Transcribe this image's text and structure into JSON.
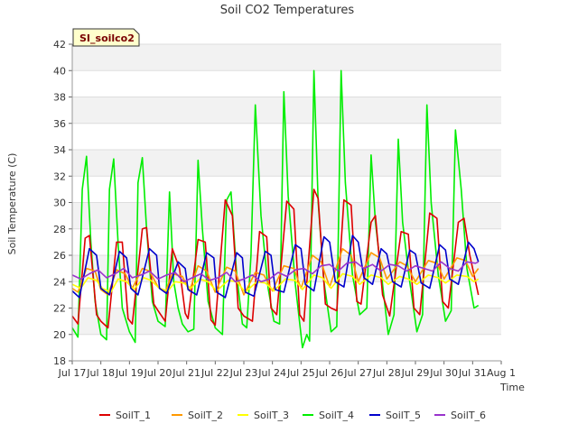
{
  "chart_data": {
    "type": "line",
    "title": "Soil CO2 Temperatures",
    "badge": "SI_soilco2",
    "xlabel": "Time",
    "ylabel": "Soil Temperature (C)",
    "ylim": [
      18,
      42
    ],
    "xlim": [
      0,
      15
    ],
    "y_ticks": [
      18,
      20,
      22,
      24,
      26,
      28,
      30,
      32,
      34,
      36,
      38,
      40,
      42
    ],
    "x_ticks": [
      {
        "x": 0,
        "label": "Jul 17"
      },
      {
        "x": 1,
        "label": "Jul 18"
      },
      {
        "x": 2,
        "label": "Jul 19"
      },
      {
        "x": 3,
        "label": "Jul 20"
      },
      {
        "x": 4,
        "label": "Jul 21"
      },
      {
        "x": 5,
        "label": "Jul 22"
      },
      {
        "x": 6,
        "label": "Jul 23"
      },
      {
        "x": 7,
        "label": "Jul 24"
      },
      {
        "x": 8,
        "label": "Jul 25"
      },
      {
        "x": 9,
        "label": "Jul 26"
      },
      {
        "x": 10,
        "label": "Jul 27"
      },
      {
        "x": 11,
        "label": "Jul 28"
      },
      {
        "x": 12,
        "label": "Jul 29"
      },
      {
        "x": 13,
        "label": "Jul 30"
      },
      {
        "x": 14,
        "label": "Jul 31"
      },
      {
        "x": 15,
        "label": "Aug 1"
      }
    ],
    "grid": true,
    "legend_position": "bottom",
    "series": [
      {
        "name": "SoilT_1",
        "color": "#dd0000",
        "x": [
          0.0,
          0.2,
          0.45,
          0.6,
          0.85,
          1.0,
          1.25,
          1.55,
          1.75,
          1.95,
          2.1,
          2.45,
          2.6,
          2.85,
          3.0,
          3.25,
          3.5,
          3.75,
          3.95,
          4.05,
          4.4,
          4.65,
          4.85,
          5.0,
          5.35,
          5.6,
          5.8,
          6.0,
          6.3,
          6.55,
          6.8,
          6.95,
          7.15,
          7.5,
          7.75,
          7.95,
          8.1,
          8.45,
          8.6,
          8.85,
          9.05,
          9.25,
          9.5,
          9.75,
          9.95,
          10.1,
          10.45,
          10.6,
          10.85,
          11.1,
          11.5,
          11.75,
          11.95,
          12.15,
          12.5,
          12.75,
          12.95,
          13.15,
          13.5,
          13.7,
          13.9,
          14.2
        ],
        "y": [
          21.4,
          20.8,
          27.3,
          27.5,
          21.5,
          21.0,
          20.5,
          27.0,
          27.0,
          21.2,
          20.8,
          28.0,
          28.1,
          22.3,
          21.8,
          21.0,
          26.5,
          25.0,
          21.6,
          21.2,
          27.2,
          27.0,
          21.1,
          20.7,
          30.2,
          29.0,
          22.0,
          21.4,
          21.0,
          27.8,
          27.4,
          22.0,
          21.5,
          30.1,
          29.5,
          21.5,
          21.0,
          31.0,
          30.3,
          22.3,
          22.0,
          21.8,
          30.2,
          29.8,
          22.5,
          22.3,
          28.5,
          29.0,
          23.0,
          21.4,
          27.8,
          27.6,
          22.0,
          21.5,
          29.2,
          28.8,
          22.5,
          22.0,
          28.5,
          28.8,
          26.0,
          23.0
        ]
      },
      {
        "name": "SoilT_2",
        "color": "#ff9900",
        "x": [
          0.0,
          0.2,
          0.5,
          0.8,
          1.0,
          1.25,
          1.55,
          1.85,
          2.1,
          2.45,
          2.7,
          3.0,
          3.25,
          3.5,
          3.85,
          4.1,
          4.4,
          4.7,
          5.0,
          5.4,
          5.7,
          6.0,
          6.4,
          6.7,
          7.0,
          7.4,
          7.75,
          8.0,
          8.4,
          8.7,
          9.0,
          9.45,
          9.75,
          10.0,
          10.45,
          10.75,
          11.0,
          11.45,
          11.7,
          12.0,
          12.45,
          12.75,
          13.0,
          13.45,
          13.75,
          14.0,
          14.2
        ],
        "y": [
          23.5,
          23.2,
          25.0,
          24.8,
          23.4,
          23.0,
          24.9,
          24.6,
          23.5,
          25.0,
          24.8,
          23.6,
          23.2,
          24.6,
          24.4,
          23.3,
          25.2,
          24.8,
          23.2,
          25.1,
          24.8,
          23.0,
          24.7,
          24.5,
          23.3,
          25.2,
          25.0,
          23.5,
          26.0,
          25.5,
          23.6,
          26.5,
          26.0,
          24.0,
          26.2,
          25.8,
          24.2,
          25.5,
          25.2,
          24.0,
          25.6,
          25.4,
          24.2,
          25.8,
          25.6,
          24.4,
          25.0
        ]
      },
      {
        "name": "SoilT_3",
        "color": "#ffff00",
        "x": [
          0.0,
          0.3,
          0.55,
          0.85,
          1.05,
          1.35,
          1.6,
          1.9,
          2.15,
          2.5,
          2.75,
          3.05,
          3.35,
          3.6,
          3.9,
          4.15,
          4.45,
          4.75,
          5.05,
          5.45,
          5.75,
          6.05,
          6.45,
          6.75,
          7.05,
          7.45,
          7.8,
          8.05,
          8.45,
          8.75,
          9.05,
          9.45,
          9.8,
          10.05,
          10.45,
          10.8,
          11.05,
          11.45,
          11.75,
          12.05,
          12.45,
          12.8,
          13.05,
          13.45,
          13.8,
          14.05,
          14.2
        ],
        "y": [
          23.8,
          23.5,
          24.3,
          24.1,
          23.5,
          23.2,
          24.2,
          24.0,
          23.4,
          24.3,
          24.1,
          23.5,
          23.3,
          24.0,
          23.9,
          23.5,
          24.2,
          24.0,
          23.3,
          24.1,
          24.0,
          23.2,
          24.0,
          23.9,
          23.3,
          24.2,
          24.1,
          23.4,
          24.5,
          24.3,
          23.5,
          24.6,
          24.4,
          23.8,
          24.5,
          24.3,
          23.8,
          24.4,
          24.2,
          23.8,
          24.5,
          24.3,
          23.9,
          24.5,
          24.4,
          24.0,
          24.2
        ]
      },
      {
        "name": "SoilT_4",
        "color": "#00ee00",
        "x": [
          0.0,
          0.2,
          0.35,
          0.5,
          0.65,
          0.8,
          1.0,
          1.2,
          1.3,
          1.45,
          1.6,
          1.75,
          2.0,
          2.2,
          2.3,
          2.45,
          2.6,
          2.8,
          3.0,
          3.25,
          3.4,
          3.55,
          3.7,
          3.85,
          4.05,
          4.25,
          4.4,
          4.55,
          4.75,
          5.0,
          5.25,
          5.4,
          5.55,
          5.75,
          5.95,
          6.1,
          6.25,
          6.4,
          6.6,
          6.85,
          7.05,
          7.25,
          7.4,
          7.55,
          7.8,
          8.05,
          8.2,
          8.3,
          8.45,
          8.6,
          8.8,
          9.05,
          9.25,
          9.4,
          9.55,
          9.8,
          10.05,
          10.3,
          10.45,
          10.6,
          10.85,
          11.05,
          11.25,
          11.4,
          11.55,
          11.8,
          12.05,
          12.25,
          12.4,
          12.55,
          12.8,
          13.05,
          13.25,
          13.4,
          13.6,
          13.8,
          14.05,
          14.2
        ],
        "y": [
          20.5,
          19.8,
          31.0,
          33.5,
          27.0,
          22.5,
          20.0,
          19.6,
          31.0,
          33.3,
          27.0,
          22.0,
          20.2,
          19.4,
          31.5,
          33.4,
          28.0,
          22.5,
          21.0,
          20.6,
          30.8,
          24.0,
          22.0,
          20.8,
          20.2,
          20.4,
          33.2,
          28.0,
          22.5,
          20.5,
          20.0,
          30.2,
          30.8,
          24.5,
          20.8,
          20.5,
          26.0,
          37.4,
          29.0,
          23.5,
          21.0,
          20.8,
          38.4,
          30.5,
          23.8,
          19.0,
          20.0,
          19.5,
          40.0,
          30.0,
          24.0,
          20.2,
          20.6,
          40.0,
          31.5,
          24.5,
          21.5,
          22.0,
          33.6,
          28.5,
          23.8,
          20.0,
          21.5,
          34.8,
          28.5,
          24.0,
          20.2,
          21.5,
          37.4,
          30.0,
          24.5,
          21.0,
          21.8,
          35.5,
          31.0,
          25.0,
          22.0,
          22.2
        ]
      },
      {
        "name": "SoilT_5",
        "color": "#0000cc",
        "x": [
          0.0,
          0.25,
          0.6,
          0.85,
          1.0,
          1.3,
          1.65,
          1.9,
          2.05,
          2.3,
          2.7,
          2.95,
          3.05,
          3.3,
          3.7,
          3.95,
          4.05,
          4.35,
          4.7,
          4.95,
          5.05,
          5.35,
          5.75,
          5.95,
          6.05,
          6.35,
          6.75,
          6.95,
          7.1,
          7.4,
          7.8,
          8.0,
          8.15,
          8.45,
          8.8,
          9.0,
          9.2,
          9.5,
          9.8,
          10.0,
          10.2,
          10.5,
          10.8,
          11.0,
          11.2,
          11.5,
          11.8,
          12.0,
          12.2,
          12.5,
          12.85,
          13.05,
          13.2,
          13.5,
          13.85,
          14.05,
          14.2
        ],
        "y": [
          23.3,
          22.8,
          26.5,
          26.0,
          23.5,
          23.0,
          26.3,
          25.8,
          23.5,
          23.0,
          26.5,
          26.0,
          23.5,
          23.1,
          25.5,
          25.0,
          23.4,
          23.0,
          26.2,
          25.8,
          23.2,
          22.8,
          26.2,
          25.8,
          23.2,
          22.9,
          26.3,
          26.0,
          23.4,
          23.2,
          26.8,
          26.5,
          23.8,
          23.3,
          27.4,
          27.0,
          24.0,
          23.6,
          27.5,
          27.0,
          24.3,
          23.8,
          26.5,
          26.1,
          24.0,
          23.6,
          26.4,
          26.1,
          23.9,
          23.5,
          26.8,
          26.4,
          24.2,
          23.8,
          27.0,
          26.5,
          25.5
        ]
      },
      {
        "name": "SoilT_6",
        "color": "#9933cc",
        "x": [
          0.0,
          0.3,
          0.6,
          0.9,
          1.2,
          1.5,
          1.8,
          2.1,
          2.4,
          2.7,
          3.0,
          3.3,
          3.6,
          3.9,
          4.2,
          4.5,
          4.8,
          5.1,
          5.4,
          5.7,
          6.0,
          6.3,
          6.6,
          6.9,
          7.2,
          7.5,
          7.8,
          8.1,
          8.4,
          8.7,
          9.0,
          9.3,
          9.6,
          9.9,
          10.2,
          10.5,
          10.8,
          11.1,
          11.4,
          11.7,
          12.0,
          12.3,
          12.6,
          12.9,
          13.2,
          13.5,
          13.8,
          14.1,
          14.2
        ],
        "y": [
          24.5,
          24.2,
          24.6,
          24.9,
          24.3,
          24.6,
          25.0,
          24.3,
          24.5,
          24.8,
          24.2,
          24.5,
          24.7,
          24.0,
          24.3,
          24.6,
          24.1,
          24.3,
          24.7,
          24.0,
          24.2,
          24.5,
          24.0,
          24.2,
          24.7,
          24.4,
          24.9,
          25.0,
          24.6,
          25.2,
          25.3,
          24.8,
          25.4,
          25.5,
          25.0,
          25.3,
          24.8,
          25.3,
          25.2,
          24.8,
          25.2,
          25.0,
          24.8,
          25.5,
          25.0,
          24.8,
          25.5,
          25.4,
          25.5
        ]
      }
    ]
  }
}
